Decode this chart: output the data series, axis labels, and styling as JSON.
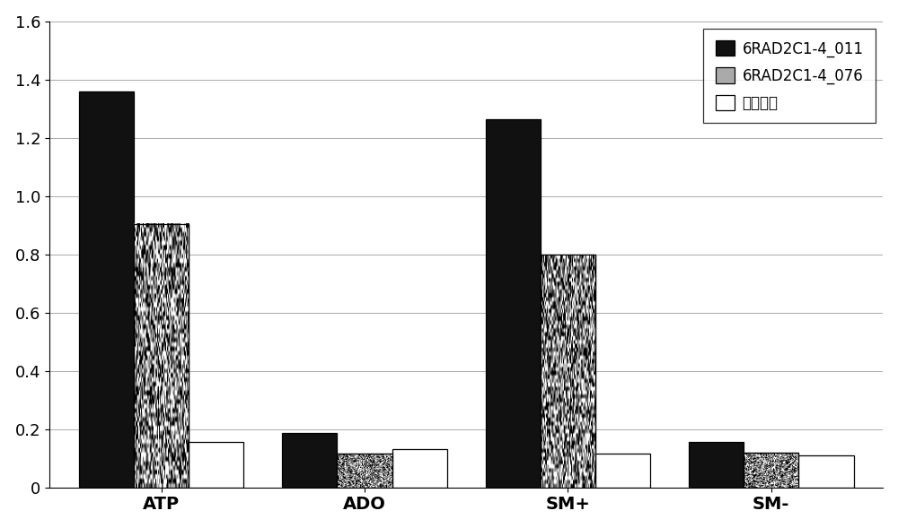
{
  "categories": [
    "ATP",
    "ADO",
    "SM+",
    "SM-"
  ],
  "series": [
    {
      "label": "6RAD2C1-4_011",
      "values": [
        1.36,
        0.185,
        1.265,
        0.155
      ],
      "color": "#111111",
      "hatch": null
    },
    {
      "label": "6RAD2C1-4_076",
      "values": [
        0.905,
        0.115,
        0.8,
        0.12
      ],
      "color": "#b0b0b0",
      "hatch": null
    },
    {
      "label": "阴性对照",
      "values": [
        0.155,
        0.13,
        0.115,
        0.11
      ],
      "color": "#ffffff",
      "hatch": null
    }
  ],
  "ylim": [
    0,
    1.6
  ],
  "yticks": [
    0,
    0.2,
    0.4,
    0.6,
    0.8,
    1.0,
    1.2,
    1.4,
    1.6
  ],
  "bar_width": 0.27,
  "grid": true,
  "grid_color": "#aaaaaa",
  "grid_linestyle": "-",
  "legend_fontsize": 12,
  "tick_fontsize": 13,
  "xtick_fontsize": 14,
  "background_color": "#ffffff",
  "figsize": [
    10.0,
    5.89
  ],
  "dpi": 100,
  "noise_seed": 42
}
